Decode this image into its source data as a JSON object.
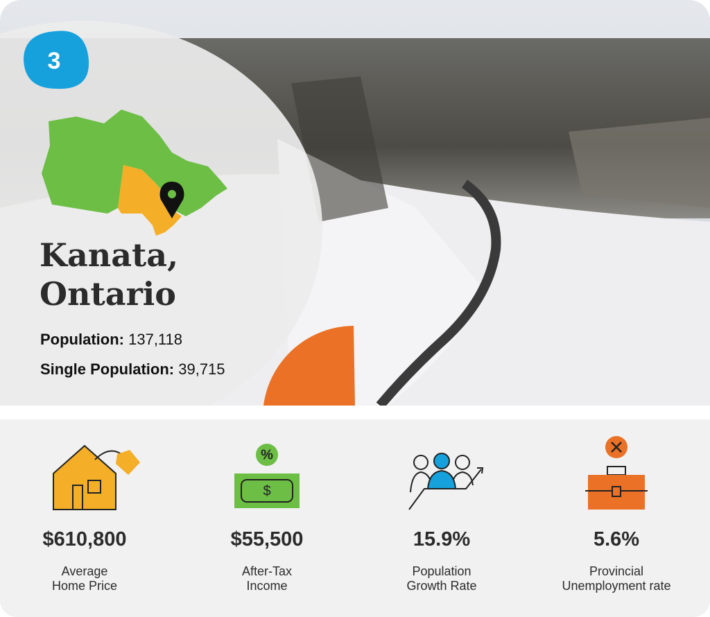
{
  "badge": "3",
  "location": {
    "title_lines": [
      "Kanata,",
      "Ontario"
    ]
  },
  "stats": [
    {
      "label": "Population:",
      "value": "137,118"
    },
    {
      "label": "Single Population:",
      "value": "39,715"
    }
  ],
  "icons": {
    "percent": "%",
    "dollar": "$"
  },
  "metrics": [
    {
      "value": "$610,800",
      "label_lines": [
        "Average",
        "Home Price"
      ]
    },
    {
      "value": "$55,500",
      "label_lines": [
        "After-Tax",
        "Income"
      ]
    },
    {
      "value": "15.9%",
      "label_lines": [
        "Population",
        "Growth Rate"
      ]
    },
    {
      "value": "5.6%",
      "label_lines": [
        "Provincial",
        "Unemployment rate"
      ]
    }
  ]
}
